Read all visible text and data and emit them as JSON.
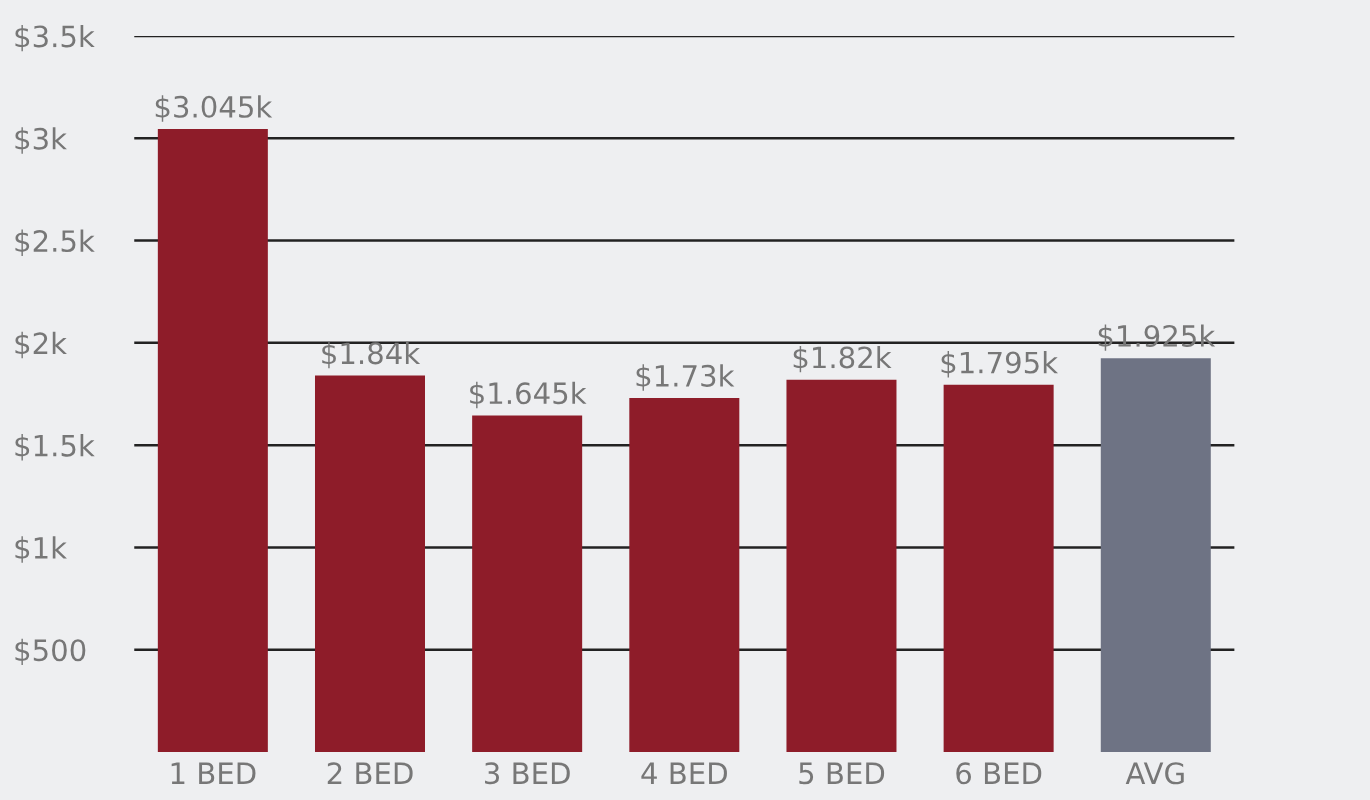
{
  "chart_data": {
    "type": "bar",
    "categories": [
      "1 BED",
      "2 BED",
      "3 BED",
      "4 BED",
      "5 BED",
      "6 BED",
      "AVG"
    ],
    "values": [
      3045,
      1840,
      1645,
      1730,
      1820,
      1795,
      1925
    ],
    "colors": [
      "#8e1c29",
      "#8e1c29",
      "#8e1c29",
      "#8e1c29",
      "#8e1c29",
      "#8e1c29",
      "#6e7384"
    ],
    "value_labels": [
      "$3.045k",
      "$1.84k",
      "$1.645k",
      "$1.73k",
      "$1.82k",
      "$1.795k",
      "$1.925k"
    ],
    "ylim": [
      0,
      3500
    ],
    "yticks": [
      {
        "value": 500,
        "label": "$500"
      },
      {
        "value": 1000,
        "label": "$1k"
      },
      {
        "value": 1500,
        "label": "$1.5k"
      },
      {
        "value": 2000,
        "label": "$2k"
      },
      {
        "value": 2500,
        "label": "$2.5k"
      },
      {
        "value": 3000,
        "label": "$3k"
      },
      {
        "value": 3500,
        "label": "$3.5k"
      }
    ],
    "grid": "y"
  }
}
